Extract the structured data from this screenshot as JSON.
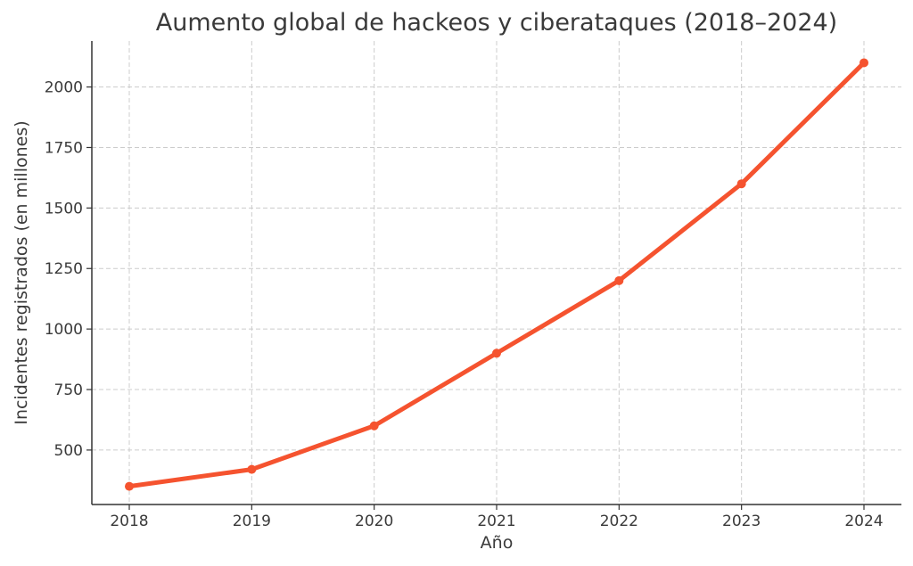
{
  "chart_data": {
    "type": "line",
    "title": "Aumento global de hackeos y ciberataques (2018–2024)",
    "xlabel": "Año",
    "ylabel": "Incidentes registrados (en millones)",
    "x": [
      "2018",
      "2019",
      "2020",
      "2021",
      "2022",
      "2023",
      "2024"
    ],
    "series": [
      {
        "values": [
          350,
          420,
          600,
          900,
          1200,
          1600,
          2100
        ],
        "color": "#f5532f"
      }
    ],
    "ylim": [
      275,
      2190
    ],
    "yticks": [
      500,
      750,
      1000,
      1250,
      1500,
      1750,
      2000
    ],
    "ytick_labels": [
      "500",
      "750",
      "1000",
      "1250",
      "1500",
      "1750",
      "2000"
    ],
    "grid": true,
    "legend": "none"
  }
}
